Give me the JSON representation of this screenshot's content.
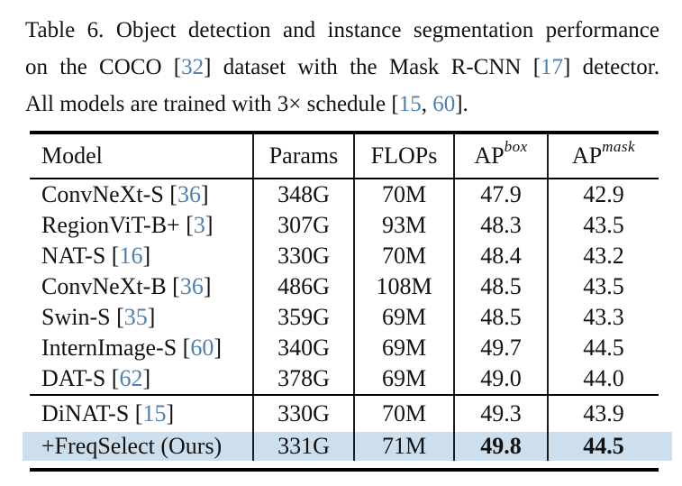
{
  "caption": {
    "lines": [
      {
        "justify": true,
        "parts": [
          {
            "text": "Table 6. Object detection and instance segmentation performance"
          }
        ]
      },
      {
        "justify": true,
        "parts": [
          {
            "text": "on the COCO ["
          },
          {
            "text": "32",
            "cite": true
          },
          {
            "text": "] dataset with the Mask R-CNN ["
          },
          {
            "text": "17",
            "cite": true
          },
          {
            "text": "] detector."
          }
        ]
      },
      {
        "justify": false,
        "parts": [
          {
            "text": "All models are trained with 3× schedule ["
          },
          {
            "text": "15",
            "cite": true
          },
          {
            "text": ", "
          },
          {
            "text": "60",
            "cite": true
          },
          {
            "text": "]."
          }
        ]
      }
    ]
  },
  "table": {
    "columns": [
      {
        "label": "Model",
        "sup": ""
      },
      {
        "label": "Params",
        "sup": ""
      },
      {
        "label": "FLOPs",
        "sup": ""
      },
      {
        "label": "AP",
        "sup": "box"
      },
      {
        "label": "AP",
        "sup": "mask"
      }
    ],
    "groups": [
      {
        "rows": [
          {
            "model_parts": [
              {
                "text": "ConvNeXt-S ["
              },
              {
                "text": "36",
                "cite": true
              },
              {
                "text": "]"
              }
            ],
            "params": "348G",
            "flops": "70M",
            "ap_box": "47.9",
            "ap_mask": "42.9",
            "highlight": false,
            "bold_ap": false
          },
          {
            "model_parts": [
              {
                "text": "RegionViT-B+ ["
              },
              {
                "text": "3",
                "cite": true
              },
              {
                "text": "]"
              }
            ],
            "params": "307G",
            "flops": "93M",
            "ap_box": "48.3",
            "ap_mask": "43.5",
            "highlight": false,
            "bold_ap": false
          },
          {
            "model_parts": [
              {
                "text": "NAT-S ["
              },
              {
                "text": "16",
                "cite": true
              },
              {
                "text": "]"
              }
            ],
            "params": "330G",
            "flops": "70M",
            "ap_box": "48.4",
            "ap_mask": "43.2",
            "highlight": false,
            "bold_ap": false
          },
          {
            "model_parts": [
              {
                "text": "ConvNeXt-B ["
              },
              {
                "text": "36",
                "cite": true
              },
              {
                "text": "]"
              }
            ],
            "params": "486G",
            "flops": "108M",
            "ap_box": "48.5",
            "ap_mask": "43.5",
            "highlight": false,
            "bold_ap": false
          },
          {
            "model_parts": [
              {
                "text": "Swin-S ["
              },
              {
                "text": "35",
                "cite": true
              },
              {
                "text": "]"
              }
            ],
            "params": "359G",
            "flops": "69M",
            "ap_box": "48.5",
            "ap_mask": "43.3",
            "highlight": false,
            "bold_ap": false
          },
          {
            "model_parts": [
              {
                "text": "InternImage-S ["
              },
              {
                "text": "60",
                "cite": true
              },
              {
                "text": "]"
              }
            ],
            "params": "340G",
            "flops": "69M",
            "ap_box": "49.7",
            "ap_mask": "44.5",
            "highlight": false,
            "bold_ap": false
          },
          {
            "model_parts": [
              {
                "text": "DAT-S ["
              },
              {
                "text": "62",
                "cite": true
              },
              {
                "text": "]"
              }
            ],
            "params": "378G",
            "flops": "69M",
            "ap_box": "49.0",
            "ap_mask": "44.0",
            "highlight": false,
            "bold_ap": false
          }
        ]
      },
      {
        "rows": [
          {
            "model_parts": [
              {
                "text": "DiNAT-S ["
              },
              {
                "text": "15",
                "cite": true
              },
              {
                "text": "]"
              }
            ],
            "params": "330G",
            "flops": "70M",
            "ap_box": "49.3",
            "ap_mask": "43.9",
            "highlight": false,
            "bold_ap": false
          },
          {
            "model_parts": [
              {
                "text": "+FreqSelect (Ours)"
              }
            ],
            "params": "331G",
            "flops": "71M",
            "ap_box": "49.8",
            "ap_mask": "44.5",
            "highlight": true,
            "bold_ap": true
          }
        ]
      }
    ]
  },
  "colors": {
    "citation": "#4d80b3",
    "row_highlight": "#cddeec",
    "rule": "#000000",
    "text": "#121212"
  }
}
